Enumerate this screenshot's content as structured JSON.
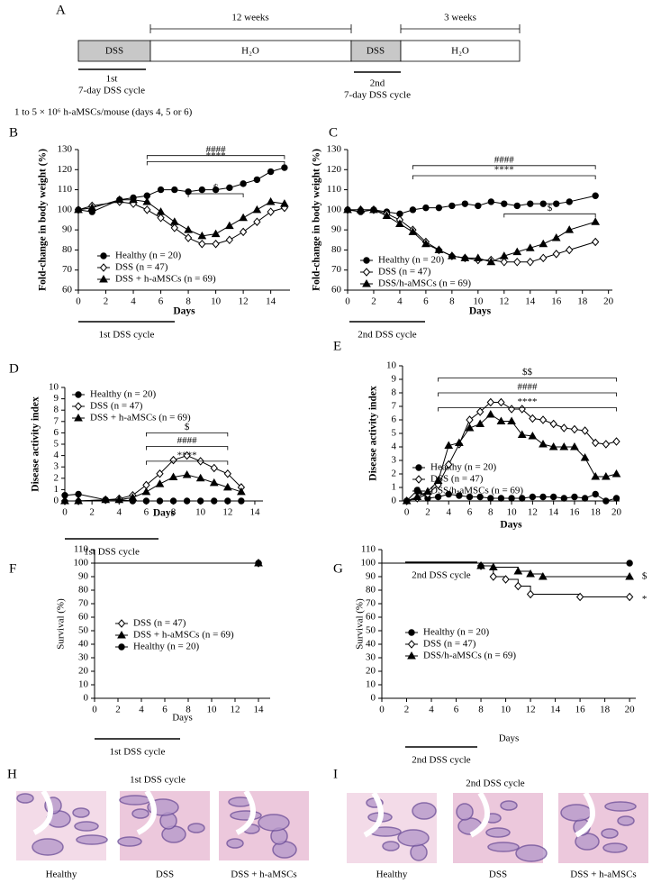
{
  "timeline": {
    "panel": "A",
    "boxes": [
      "DSS",
      "H₂O",
      "DSS",
      "H₂O"
    ],
    "spans": [
      "12 weeks",
      "3 weeks"
    ],
    "cycles": [
      {
        "ordinal": "1st",
        "text": "7-day DSS cycle"
      },
      {
        "ordinal": "2nd",
        "text": "7-day DSS cycle"
      }
    ],
    "note": "1 to 5 × 10⁶ h-aMSCs/mouse (days 4, 5 or 6)"
  },
  "chart_data": [
    {
      "type": "line",
      "panel": "B",
      "xlabel": "Days",
      "ylabel": "Fold-change in body weight (%)",
      "cycle_label": "1st DSS cycle",
      "x": [
        0,
        1,
        3,
        4,
        5,
        6,
        7,
        8,
        9,
        10,
        11,
        12,
        13,
        14,
        15
      ],
      "xlim": [
        0,
        15.4
      ],
      "xticks": [
        0,
        2,
        4,
        6,
        8,
        10,
        12,
        14
      ],
      "ylim": [
        60,
        130
      ],
      "yticks": [
        60,
        70,
        80,
        90,
        100,
        110,
        120,
        130
      ],
      "series": [
        {
          "name": "Healthy (n = 20)",
          "color": "#000000",
          "marker": "circle",
          "filled": true,
          "values": [
            100,
            99,
            105,
            106,
            107,
            110,
            110,
            109,
            110,
            110,
            111,
            113,
            115,
            119,
            121
          ]
        },
        {
          "name": "DSS (n = 47)",
          "color": "#000000",
          "marker": "diamond",
          "filled": false,
          "values": [
            100,
            102,
            104,
            103,
            100,
            96,
            91,
            86,
            83,
            83,
            85,
            89,
            94,
            99,
            101
          ]
        },
        {
          "name": "DSS + h-aMSCs (n = 69)",
          "color": "#000000",
          "marker": "triangle",
          "filled": true,
          "values": [
            100,
            101,
            105,
            105,
            104,
            99,
            94,
            90,
            87,
            88,
            92,
            96,
            100,
            104,
            103
          ]
        }
      ],
      "annotations": [
        "####",
        "****",
        "$"
      ]
    },
    {
      "type": "line",
      "panel": "C",
      "xlabel": "Days",
      "ylabel": "Fold-change in body weight (%)",
      "cycle_label": "2nd DSS cycle",
      "x": [
        0,
        1,
        2,
        3,
        4,
        5,
        6,
        7,
        8,
        9,
        10,
        11,
        12,
        13,
        14,
        15,
        16,
        17,
        19
      ],
      "xlim": [
        0,
        20.3
      ],
      "xticks": [
        0,
        2,
        4,
        6,
        8,
        10,
        12,
        14,
        16,
        18,
        20
      ],
      "ylim": [
        60,
        130
      ],
      "yticks": [
        60,
        70,
        80,
        90,
        100,
        110,
        120,
        130
      ],
      "series": [
        {
          "name": "Healthy (n = 20)",
          "color": "#000000",
          "marker": "circle",
          "filled": true,
          "values": [
            100,
            99,
            100,
            99,
            98,
            100,
            101,
            101,
            102,
            103,
            102,
            104,
            103,
            102,
            103,
            103,
            103,
            104,
            107
          ]
        },
        {
          "name": "DSS (n = 47)",
          "color": "#000000",
          "marker": "diamond",
          "filled": false,
          "values": [
            100,
            100,
            100,
            98,
            95,
            90,
            84,
            80,
            77,
            76,
            75,
            75,
            74,
            74,
            74,
            76,
            78,
            80,
            84
          ]
        },
        {
          "name": "DSS/h-aMSCs (n = 69)",
          "color": "#000000",
          "marker": "triangle",
          "filled": true,
          "values": [
            100,
            100,
            100,
            97,
            93,
            89,
            83,
            80,
            77,
            76,
            76,
            74,
            77,
            79,
            81,
            83,
            86,
            90,
            94
          ]
        }
      ],
      "annotations": [
        "####",
        "****",
        "$"
      ]
    },
    {
      "type": "line",
      "panel": "D",
      "xlabel": "Days",
      "ylabel": "Disease activity index",
      "cycle_label": "1st DSS cycle",
      "x": [
        0,
        1,
        3,
        4,
        5,
        6,
        7,
        8,
        9,
        10,
        11,
        12,
        13
      ],
      "xlim": [
        0,
        14.6
      ],
      "xticks": [
        0,
        2,
        4,
        6,
        8,
        10,
        12,
        14
      ],
      "ylim": [
        0,
        10
      ],
      "yticks": [
        0,
        1,
        2,
        3,
        4,
        5,
        6,
        7,
        8,
        9,
        10
      ],
      "series": [
        {
          "name": "Healthy (n = 20)",
          "color": "#000000",
          "marker": "circle",
          "filled": true,
          "values": [
            0.5,
            0.6,
            0.1,
            0.1,
            0,
            0,
            0,
            0,
            0,
            0,
            0,
            0,
            0
          ]
        },
        {
          "name": "DSS (n = 47)",
          "color": "#000000",
          "marker": "diamond",
          "filled": false,
          "values": [
            0,
            0,
            0.1,
            0.2,
            0.5,
            1.4,
            2.4,
            3.6,
            4.0,
            3.5,
            2.9,
            2.4,
            1.2
          ]
        },
        {
          "name": "DSS + h-aMSCs (n = 69)",
          "color": "#000000",
          "marker": "triangle",
          "filled": true,
          "values": [
            0,
            0,
            0.1,
            0.1,
            0.3,
            0.8,
            1.5,
            2.1,
            2.3,
            2.0,
            1.6,
            1.2,
            0.8
          ]
        }
      ],
      "annotations": [
        "$",
        "####",
        "****"
      ]
    },
    {
      "type": "line",
      "panel": "E",
      "xlabel": "Days",
      "ylabel": "Disease activity index",
      "cycle_label": "2nd DSS cycle",
      "x": [
        0,
        1,
        2,
        3,
        4,
        5,
        6,
        7,
        8,
        9,
        10,
        11,
        12,
        13,
        14,
        15,
        16,
        17,
        18,
        19,
        20
      ],
      "xlim": [
        -0.4,
        20.3
      ],
      "xticks": [
        0,
        2,
        4,
        6,
        8,
        10,
        12,
        14,
        16,
        18,
        20
      ],
      "ylim": [
        0,
        10
      ],
      "yticks": [
        0,
        1,
        2,
        3,
        4,
        5,
        6,
        7,
        8,
        9,
        10
      ],
      "series": [
        {
          "name": "Healthy (n = 20)",
          "color": "#000000",
          "marker": "circle",
          "filled": true,
          "values": [
            0,
            0.8,
            0.2,
            0.3,
            0.5,
            0.4,
            0.3,
            0.3,
            0.2,
            0.2,
            0.2,
            0.2,
            0.3,
            0.3,
            0.3,
            0.2,
            0.3,
            0.2,
            0.5,
            0,
            0.2
          ]
        },
        {
          "name": "DSS (n = 47)",
          "color": "#000000",
          "marker": "diamond",
          "filled": false,
          "values": [
            0,
            0.2,
            0.5,
            1.2,
            2.7,
            4.2,
            6.0,
            6.6,
            7.3,
            7.3,
            6.8,
            6.8,
            6.1,
            6.0,
            5.7,
            5.4,
            5.3,
            5.2,
            4.3,
            4.2,
            4.4
          ]
        },
        {
          "name": "DSS/h-aMSCs (n = 69)",
          "color": "#000000",
          "marker": "triangle",
          "filled": true,
          "values": [
            0,
            0.3,
            0.7,
            1.5,
            4.1,
            4.3,
            5.4,
            5.7,
            6.4,
            5.9,
            5.9,
            4.9,
            4.8,
            4.2,
            4.0,
            4.0,
            4.0,
            3.2,
            1.8,
            1.8,
            2.0
          ]
        }
      ],
      "annotations": [
        "$$",
        "####",
        "****"
      ]
    },
    {
      "type": "step",
      "panel": "F",
      "xlabel": "Days",
      "ylabel": "Survival (%)",
      "cycle_label": "1st DSS cycle",
      "xlim": [
        0,
        15
      ],
      "xticks": [
        0,
        2,
        4,
        6,
        8,
        10,
        12,
        14
      ],
      "ylim": [
        0,
        110
      ],
      "yticks": [
        0,
        10,
        20,
        30,
        40,
        50,
        60,
        70,
        80,
        90,
        100,
        110
      ],
      "series": [
        {
          "name": "DSS (n = 47)",
          "color": "#000000",
          "marker": "diamond",
          "filled": false,
          "x": [
            0,
            14
          ],
          "values": [
            100,
            100
          ]
        },
        {
          "name": "DSS + h-aMSCs (n = 69)",
          "color": "#000000",
          "marker": "triangle",
          "filled": true,
          "x": [
            0,
            14
          ],
          "values": [
            100,
            100
          ]
        },
        {
          "name": "Healthy (n = 20)",
          "color": "#000000",
          "marker": "circle",
          "filled": true,
          "x": [
            0,
            14
          ],
          "values": [
            100,
            100
          ]
        }
      ],
      "annotations": []
    },
    {
      "type": "step",
      "panel": "G",
      "xlabel": "Days",
      "ylabel": "Survival (%)",
      "cycle_label": "2nd DSS cycle",
      "xlim": [
        0,
        20.5
      ],
      "xticks": [
        0,
        2,
        4,
        6,
        8,
        10,
        12,
        14,
        16,
        18,
        20
      ],
      "ylim": [
        0,
        110
      ],
      "yticks": [
        0,
        10,
        20,
        30,
        40,
        50,
        60,
        70,
        80,
        90,
        100,
        110
      ],
      "series": [
        {
          "name": "Healthy (n = 20)",
          "color": "#000000",
          "marker": "circle",
          "filled": true,
          "x": [
            0,
            20
          ],
          "values": [
            100,
            100
          ]
        },
        {
          "name": "DSS (n = 47)",
          "color": "#000000",
          "marker": "diamond",
          "filled": false,
          "x": [
            0,
            8,
            9,
            10,
            11,
            12,
            16,
            20
          ],
          "values": [
            100,
            98,
            90,
            88,
            83,
            77,
            75,
            75
          ]
        },
        {
          "name": "DSS/h-aMSCs (n = 69)",
          "color": "#000000",
          "marker": "triangle",
          "filled": true,
          "x": [
            0,
            8,
            9,
            11,
            12,
            13,
            20
          ],
          "values": [
            100,
            98,
            97,
            94,
            92,
            90,
            90
          ]
        }
      ],
      "annotations": [
        "$",
        "*"
      ]
    }
  ],
  "histology": [
    {
      "panel": "H",
      "title": "1st DSS cycle",
      "captions": [
        "Healthy",
        "DSS",
        "DSS + h-aMSCs"
      ]
    },
    {
      "panel": "I",
      "title": "2nd DSS cycle",
      "captions": [
        "Healthy",
        "DSS",
        "DSS + h-aMSCs"
      ]
    }
  ]
}
